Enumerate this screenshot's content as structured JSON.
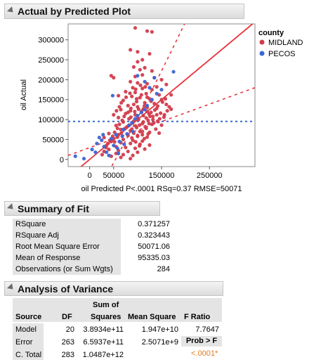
{
  "panels": {
    "plot_title": "Actual by Predicted Plot",
    "fit_title": "Summary of Fit",
    "anova_title": "Analysis of Variance"
  },
  "chart_data": {
    "type": "scatter",
    "xlabel": "oil Predicted P<.0001 RSq=0.37 RMSE=50071",
    "ylabel": "oil Actual",
    "xlim": [
      -45000,
      345000
    ],
    "ylim": [
      -18000,
      340000
    ],
    "x_ticks": [
      0,
      50000,
      150000,
      250000
    ],
    "x_tick_labels": [
      "0",
      "50000",
      "150000",
      "250000"
    ],
    "y_ticks": [
      0,
      50000,
      100000,
      150000,
      200000,
      250000,
      300000
    ],
    "y_tick_labels": [
      "0",
      "50000",
      "100000",
      "150000",
      "200000",
      "250000",
      "300000"
    ],
    "legend": {
      "title": "county",
      "position": "right",
      "items": [
        {
          "label": "MIDLAND",
          "color": "#d23c4b"
        },
        {
          "label": "PECOS",
          "color": "#3a66d4"
        }
      ]
    },
    "mean_line": 95335,
    "fit_line": {
      "color": "#e8333c",
      "confidence_band": true
    },
    "series": [
      {
        "name": "MIDLAND",
        "color": "#d23c4b",
        "points": [
          [
            95000,
            330000
          ],
          [
            120000,
            322000
          ],
          [
            130000,
            320000
          ],
          [
            85000,
            275000
          ],
          [
            100000,
            270000
          ],
          [
            125000,
            265000
          ],
          [
            110000,
            250000
          ],
          [
            100000,
            245000
          ],
          [
            92000,
            232000
          ],
          [
            115000,
            230000
          ],
          [
            105000,
            225000
          ],
          [
            130000,
            222000
          ],
          [
            45000,
            210000
          ],
          [
            50000,
            205000
          ],
          [
            95000,
            208000
          ],
          [
            110000,
            212000
          ],
          [
            135000,
            205000
          ],
          [
            150000,
            200000
          ],
          [
            85000,
            195000
          ],
          [
            100000,
            192000
          ],
          [
            120000,
            190000
          ],
          [
            160000,
            188000
          ],
          [
            140000,
            182000
          ],
          [
            90000,
            180000
          ],
          [
            110000,
            178000
          ],
          [
            130000,
            175000
          ],
          [
            75000,
            170000
          ],
          [
            95000,
            168000
          ],
          [
            118000,
            165000
          ],
          [
            145000,
            162000
          ],
          [
            60000,
            160000
          ],
          [
            88000,
            158000
          ],
          [
            105000,
            155000
          ],
          [
            125000,
            152000
          ],
          [
            150000,
            150000
          ],
          [
            70000,
            148000
          ],
          [
            98000,
            145000
          ],
          [
            115000,
            142000
          ],
          [
            135000,
            140000
          ],
          [
            160000,
            138000
          ],
          [
            80000,
            135000
          ],
          [
            100000,
            132000
          ],
          [
            120000,
            130000
          ],
          [
            140000,
            128000
          ],
          [
            170000,
            126000
          ],
          [
            65000,
            125000
          ],
          [
            85000,
            122000
          ],
          [
            108000,
            120000
          ],
          [
            128000,
            118000
          ],
          [
            148000,
            116000
          ],
          [
            75000,
            115000
          ],
          [
            95000,
            112000
          ],
          [
            112000,
            110000
          ],
          [
            132000,
            108000
          ],
          [
            155000,
            106000
          ],
          [
            60000,
            105000
          ],
          [
            82000,
            102000
          ],
          [
            102000,
            100000
          ],
          [
            122000,
            98000
          ],
          [
            142000,
            96000
          ],
          [
            70000,
            94000
          ],
          [
            90000,
            92000
          ],
          [
            110000,
            90000
          ],
          [
            130000,
            88000
          ],
          [
            150000,
            86000
          ],
          [
            55000,
            85000
          ],
          [
            78000,
            82000
          ],
          [
            98000,
            80000
          ],
          [
            118000,
            78000
          ],
          [
            138000,
            76000
          ],
          [
            65000,
            75000
          ],
          [
            85000,
            72000
          ],
          [
            105000,
            70000
          ],
          [
            125000,
            68000
          ],
          [
            145000,
            66000
          ],
          [
            40000,
            65000
          ],
          [
            60000,
            62000
          ],
          [
            80000,
            60000
          ],
          [
            100000,
            58000
          ],
          [
            120000,
            56000
          ],
          [
            30000,
            55000
          ],
          [
            50000,
            52000
          ],
          [
            70000,
            50000
          ],
          [
            90000,
            48000
          ],
          [
            110000,
            46000
          ],
          [
            45000,
            45000
          ],
          [
            65000,
            42000
          ],
          [
            85000,
            40000
          ],
          [
            105000,
            38000
          ],
          [
            125000,
            36000
          ],
          [
            35000,
            35000
          ],
          [
            55000,
            32000
          ],
          [
            75000,
            30000
          ],
          [
            95000,
            28000
          ],
          [
            115000,
            26000
          ],
          [
            40000,
            25000
          ],
          [
            60000,
            22000
          ],
          [
            80000,
            20000
          ],
          [
            100000,
            18000
          ],
          [
            55000,
            15000
          ],
          [
            70000,
            12000
          ],
          [
            90000,
            10000
          ],
          [
            45000,
            8000
          ],
          [
            65000,
            5000
          ],
          [
            85000,
            2000
          ],
          [
            100000,
            60000
          ],
          [
            110000,
            62000
          ],
          [
            92000,
            66000
          ],
          [
            88000,
            76000
          ],
          [
            96000,
            84000
          ],
          [
            104000,
            86000
          ],
          [
            112000,
            94000
          ],
          [
            118000,
            104000
          ],
          [
            124000,
            114000
          ],
          [
            136000,
            124000
          ],
          [
            142000,
            134000
          ],
          [
            152000,
            144000
          ],
          [
            128000,
            146000
          ],
          [
            120000,
            156000
          ],
          [
            108000,
            162000
          ],
          [
            98000,
            152000
          ],
          [
            92000,
            138000
          ],
          [
            86000,
            128000
          ],
          [
            80000,
            118000
          ],
          [
            72000,
            108000
          ],
          [
            68000,
            98000
          ],
          [
            62000,
            88000
          ],
          [
            58000,
            78000
          ],
          [
            52000,
            68000
          ],
          [
            48000,
            58000
          ],
          [
            42000,
            48000
          ],
          [
            38000,
            40000
          ],
          [
            34000,
            30000
          ],
          [
            30000,
            20000
          ],
          [
            26000,
            12000
          ],
          [
            94000,
            120000
          ],
          [
            102000,
            126000
          ],
          [
            114000,
            134000
          ],
          [
            126000,
            108000
          ],
          [
            134000,
            92000
          ],
          [
            146000,
            102000
          ],
          [
            156000,
            112000
          ],
          [
            162000,
            122000
          ],
          [
            166000,
            132000
          ],
          [
            158000,
            152000
          ],
          [
            170000,
            162000
          ],
          [
            116000,
            182000
          ],
          [
            106000,
            186000
          ],
          [
            96000,
            176000
          ],
          [
            84000,
            166000
          ],
          [
            76000,
            156000
          ],
          [
            66000,
            142000
          ],
          [
            62000,
            132000
          ],
          [
            56000,
            122000
          ],
          [
            50000,
            112000
          ],
          [
            88000,
            54000
          ],
          [
            96000,
            44000
          ],
          [
            104000,
            34000
          ],
          [
            114000,
            52000
          ],
          [
            122000,
            64000
          ],
          [
            82000,
            86000
          ],
          [
            74000,
            78000
          ],
          [
            66000,
            66000
          ],
          [
            58000,
            56000
          ],
          [
            52000,
            44000
          ],
          [
            110000,
            70000
          ],
          [
            116000,
            82000
          ],
          [
            124000,
            90000
          ],
          [
            132000,
            100000
          ],
          [
            140000,
            112000
          ],
          [
            120000,
            120000
          ],
          [
            112000,
            126000
          ],
          [
            100000,
            104000
          ],
          [
            92000,
            96000
          ],
          [
            86000,
            106000
          ]
        ]
      },
      {
        "name": "PECOS",
        "color": "#3a66d4",
        "points": [
          [
            -30000,
            8000
          ],
          [
            -12000,
            2000
          ],
          [
            5000,
            25000
          ],
          [
            15000,
            40000
          ],
          [
            20000,
            55000
          ],
          [
            25000,
            48000
          ],
          [
            30000,
            32000
          ],
          [
            35000,
            18000
          ],
          [
            40000,
            10000
          ],
          [
            45000,
            52000
          ],
          [
            50000,
            35000
          ],
          [
            55000,
            62000
          ],
          [
            58000,
            28000
          ],
          [
            62000,
            45000
          ],
          [
            68000,
            58000
          ],
          [
            72000,
            38000
          ],
          [
            78000,
            64000
          ],
          [
            82000,
            85000
          ],
          [
            88000,
            92000
          ],
          [
            95000,
            102000
          ],
          [
            100000,
            110000
          ],
          [
            108000,
            118000
          ],
          [
            115000,
            125000
          ],
          [
            120000,
            135000
          ],
          [
            130000,
            150000
          ],
          [
            140000,
            165000
          ],
          [
            150000,
            175000
          ],
          [
            175000,
            220000
          ],
          [
            100000,
            210000
          ],
          [
            115000,
            195000
          ],
          [
            125000,
            180000
          ],
          [
            135000,
            205000
          ],
          [
            48000,
            160000
          ],
          [
            70000,
            75000
          ],
          [
            90000,
            70000
          ],
          [
            60000,
            15000
          ],
          [
            28000,
            62000
          ],
          [
            12000,
            18000
          ]
        ]
      }
    ]
  },
  "summary_of_fit": {
    "rows": [
      {
        "label": "RSquare",
        "value": "0.371257"
      },
      {
        "label": "RSquare Adj",
        "value": "0.323443"
      },
      {
        "label": "Root Mean Square Error",
        "value": "50071.06"
      },
      {
        "label": "Mean of Response",
        "value": "95335.03"
      },
      {
        "label": "Observations (or Sum Wgts)",
        "value": "284"
      }
    ]
  },
  "anova": {
    "head_sum_of": "Sum of",
    "columns": [
      "Source",
      "DF",
      "Squares",
      "Mean Square",
      "F Ratio"
    ],
    "prob_label": "Prob > F",
    "rows": [
      {
        "source": "Model",
        "df": "20",
        "ss": "3.8934e+11",
        "ms": "1.947e+10",
        "f": "7.7647"
      },
      {
        "source": "Error",
        "df": "263",
        "ss": "6.5937e+11",
        "ms": "2.5071e+9",
        "f": ""
      },
      {
        "source": "C. Total",
        "df": "283",
        "ss": "1.0487e+12",
        "ms": "",
        "f": ""
      }
    ],
    "prob_value": "<.0001*"
  }
}
